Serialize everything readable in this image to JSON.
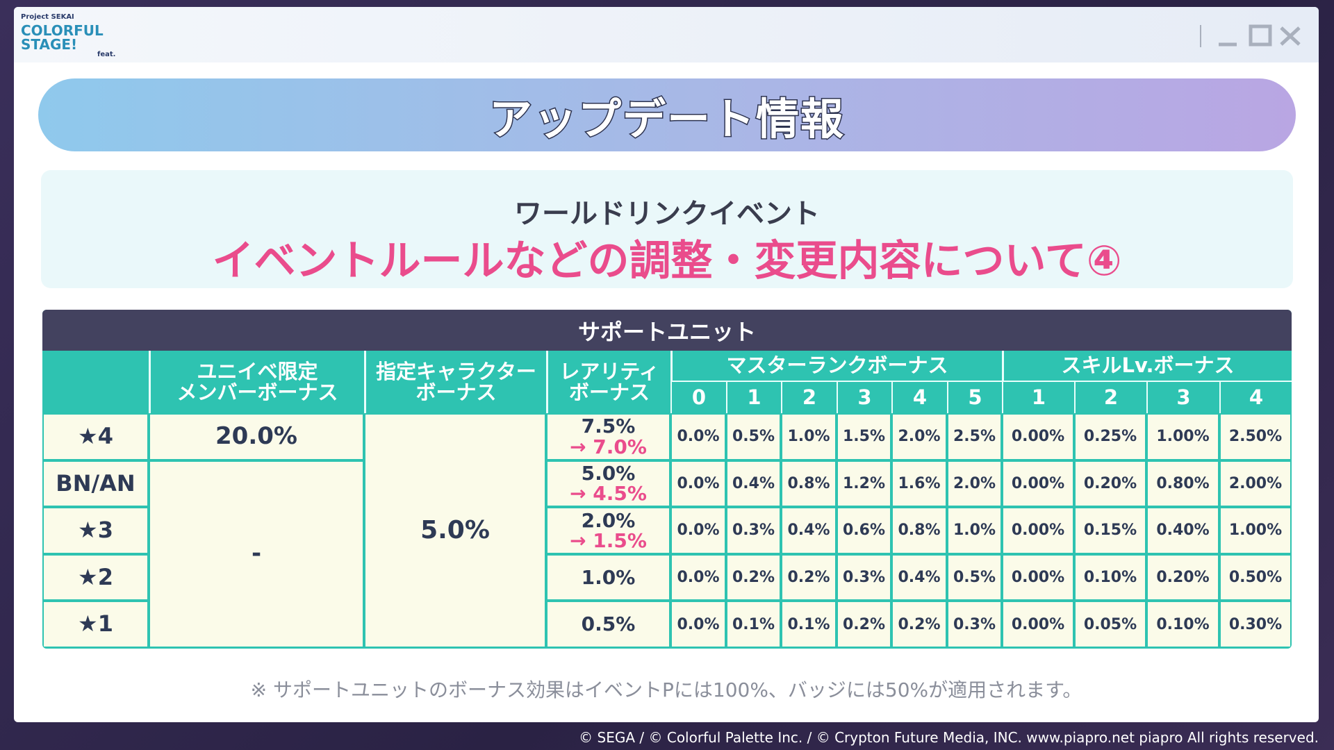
{
  "header": {
    "logo": {
      "top": "Project SEKAI",
      "main": "COLORFUL STAGE!",
      "sub": "feat."
    }
  },
  "banner": {
    "title": "アップデート情報"
  },
  "notice": {
    "subtitle": "ワールドリンクイベント",
    "title": "イベントルールなどの調整・変更内容について④"
  },
  "table": {
    "title": "サポートユニット",
    "headers": {
      "unit_bonus": [
        "ユニイベ限定",
        "メンバーボーナス"
      ],
      "character_bonus": [
        "指定キャラクター",
        "ボーナス"
      ],
      "rarity_bonus": [
        "レアリティ",
        "ボーナス"
      ],
      "master_rank": {
        "label": "マスターランクボーナス",
        "levels": [
          "0",
          "1",
          "2",
          "3",
          "4",
          "5"
        ]
      },
      "skill_level": {
        "label": "スキルLv.ボーナス",
        "levels": [
          "1",
          "2",
          "3",
          "4"
        ]
      }
    },
    "unit_bonus_other": "-",
    "character_bonus": "5.0%",
    "rows": [
      {
        "rarity": "★4",
        "unit_bonus": "20.0%",
        "rarity_bonus": {
          "before": "7.5%",
          "after": "→ 7.0%"
        },
        "master_rank": [
          "0.0%",
          "0.5%",
          "1.0%",
          "1.5%",
          "2.0%",
          "2.5%"
        ],
        "skill_level": [
          "0.00%",
          "0.25%",
          "1.00%",
          "2.50%"
        ]
      },
      {
        "rarity": "BN/AN",
        "rarity_bonus": {
          "before": "5.0%",
          "after": "→ 4.5%"
        },
        "master_rank": [
          "0.0%",
          "0.4%",
          "0.8%",
          "1.2%",
          "1.6%",
          "2.0%"
        ],
        "skill_level": [
          "0.00%",
          "0.20%",
          "0.80%",
          "2.00%"
        ]
      },
      {
        "rarity": "★3",
        "rarity_bonus": {
          "before": "2.0%",
          "after": "→ 1.5%"
        },
        "master_rank": [
          "0.0%",
          "0.3%",
          "0.4%",
          "0.6%",
          "0.8%",
          "1.0%"
        ],
        "skill_level": [
          "0.00%",
          "0.15%",
          "0.40%",
          "1.00%"
        ]
      },
      {
        "rarity": "★2",
        "rarity_bonus": "1.0%",
        "master_rank": [
          "0.0%",
          "0.2%",
          "0.2%",
          "0.3%",
          "0.4%",
          "0.5%"
        ],
        "skill_level": [
          "0.00%",
          "0.10%",
          "0.20%",
          "0.50%"
        ]
      },
      {
        "rarity": "★1",
        "rarity_bonus": "0.5%",
        "master_rank": [
          "0.0%",
          "0.1%",
          "0.1%",
          "0.2%",
          "0.2%",
          "0.3%"
        ],
        "skill_level": [
          "0.00%",
          "0.05%",
          "0.10%",
          "0.30%"
        ]
      }
    ]
  },
  "footnote": "※ サポートユニットのボーナス効果はイベントPには100%、バッジには50%が適用されます。",
  "copyright": "© SEGA / © Colorful Palette Inc. / © Crypton Future Media, INC. www.piapro.net piapro All rights reserved."
}
